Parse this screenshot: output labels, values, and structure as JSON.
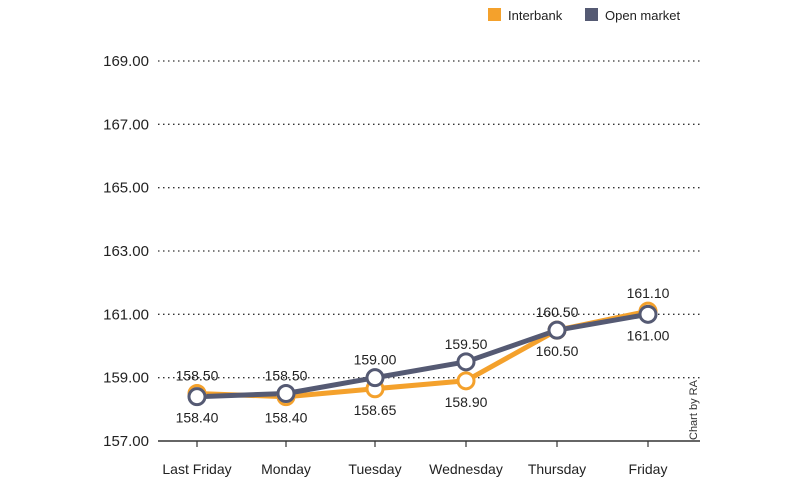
{
  "chart_data": {
    "type": "line",
    "categories": [
      "Last Friday",
      "Monday",
      "Tuesday",
      "Wednesday",
      "Thursday",
      "Friday"
    ],
    "series": [
      {
        "name": "Interbank",
        "color": "#f4a12c",
        "values": [
          158.5,
          158.4,
          158.65,
          158.9,
          160.5,
          161.1
        ],
        "labels": [
          "158.50",
          "158.40",
          "158.65",
          "158.90",
          "160.50",
          "161.10"
        ]
      },
      {
        "name": "Open market",
        "color": "#555a73",
        "values": [
          158.4,
          158.5,
          159.0,
          159.5,
          160.5,
          161.0
        ],
        "labels": [
          "158.40",
          "158.50",
          "159.00",
          "159.50",
          "160.50",
          "161.00"
        ]
      }
    ],
    "y_ticks": [
      "157.00",
      "159.00",
      "161.00",
      "163.00",
      "165.00",
      "167.00",
      "169.00"
    ],
    "ylim": [
      157,
      169
    ],
    "grid": "dotted-horizontal",
    "legend_position": "top-right",
    "title": "",
    "xlabel": "",
    "ylabel": ""
  },
  "credit": "Chart by RA"
}
